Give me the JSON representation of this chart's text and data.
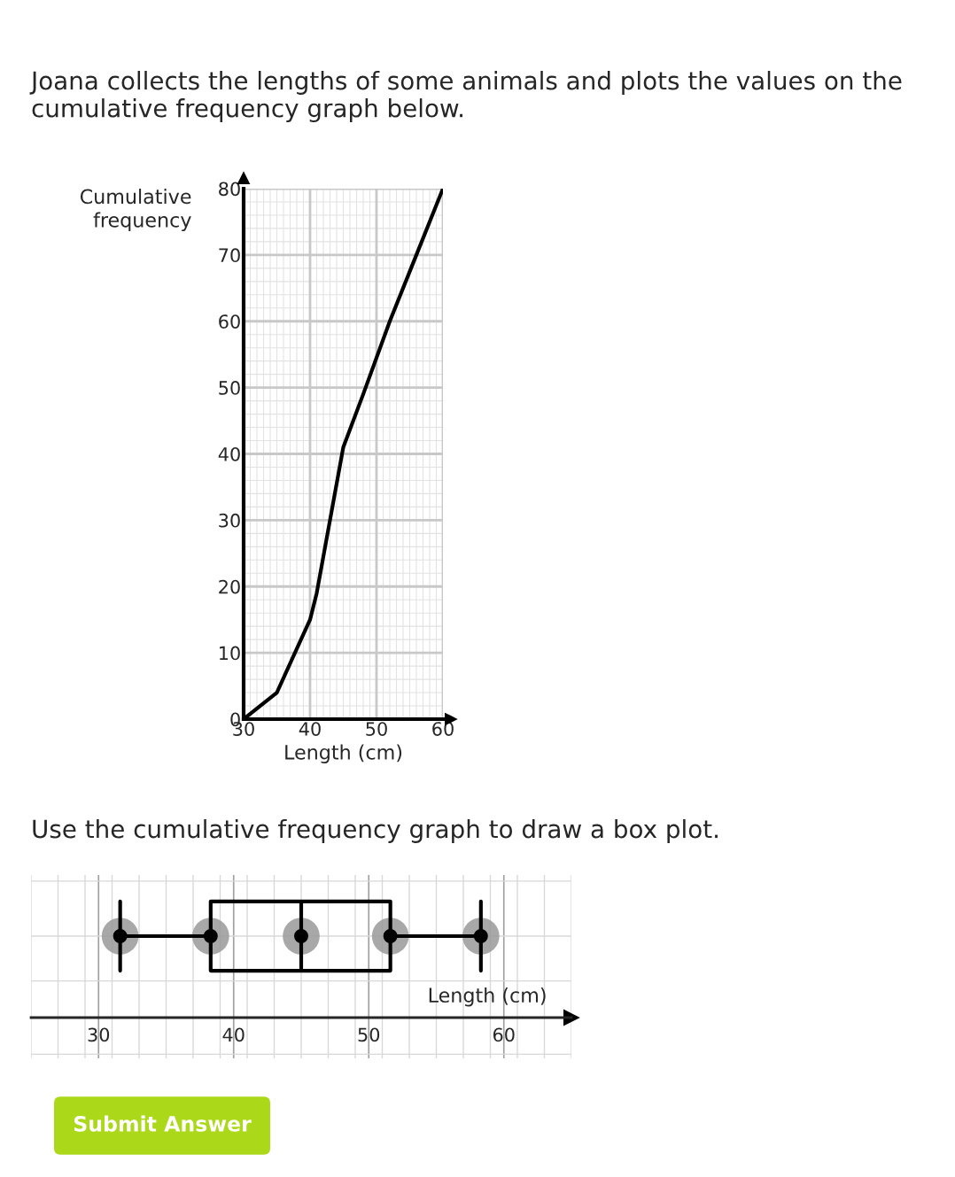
{
  "chart_data": [
    {
      "type": "line",
      "title": "Joana collects the lengths of some animals and plots the values on the cumulative frequency graph below.",
      "xlabel": "Length (cm)",
      "ylabel": "Cumulative frequency",
      "x": [
        30,
        35,
        40,
        41,
        45,
        48,
        52,
        56,
        60
      ],
      "series": [
        {
          "color": "#000000",
          "values": [
            0,
            4,
            15,
            19,
            41,
            49,
            60,
            70,
            80
          ]
        }
      ],
      "xlim": [
        30,
        60
      ],
      "ylim": [
        0,
        80
      ],
      "xticks": [
        30,
        40,
        50,
        60
      ],
      "yticks": [
        0,
        10,
        20,
        30,
        40,
        50,
        60,
        70,
        80
      ],
      "grid": true
    },
    {
      "type": "box",
      "title": "Use the cumulative frequency graph to draw a box plot.",
      "xlabel": "Length (cm)",
      "orientation": "horizontal",
      "categories": [
        null
      ],
      "boxes": [
        {
          "low": 31.6,
          "q1": 38.3,
          "median": 45,
          "q3": 51.6,
          "high": 58.3
        }
      ],
      "xlim": [
        25,
        65
      ],
      "xticks": [
        30,
        40,
        50,
        60
      ],
      "tick_labels": "x",
      "grid": true
    },
    {
      "type": "other",
      "annotations": [
        "Submit Answer"
      ]
    }
  ]
}
